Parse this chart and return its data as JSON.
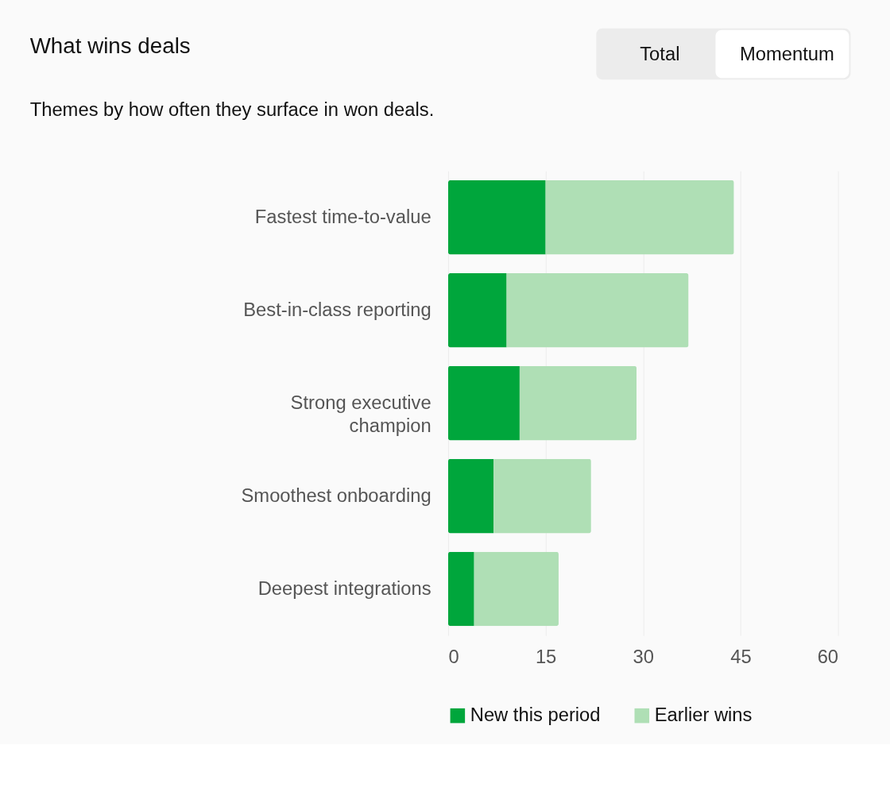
{
  "chart_data": {
    "type": "bar",
    "orientation": "horizontal",
    "stacked": true,
    "title": "What wins deals",
    "subtitle": "Themes by how often they surface in won deals.",
    "annotations": [
      "Total",
      "Momentum"
    ],
    "categories": [
      "Fastest time-to-value",
      "Best-in-class reporting",
      "Strong executive champion",
      "Smoothest onboarding",
      "Deepest integrations"
    ],
    "series": [
      {
        "name": "New this period",
        "color": "#00a63c",
        "values": [
          15,
          9,
          11,
          7,
          4
        ]
      },
      {
        "name": "Earlier wins",
        "color": "#afdfb5",
        "values": [
          29,
          28,
          18,
          15,
          13
        ]
      }
    ],
    "xlim": [
      0,
      60
    ],
    "xticks": [
      0,
      15,
      30,
      45,
      60
    ],
    "grid": "x",
    "legend": "bottom"
  }
}
